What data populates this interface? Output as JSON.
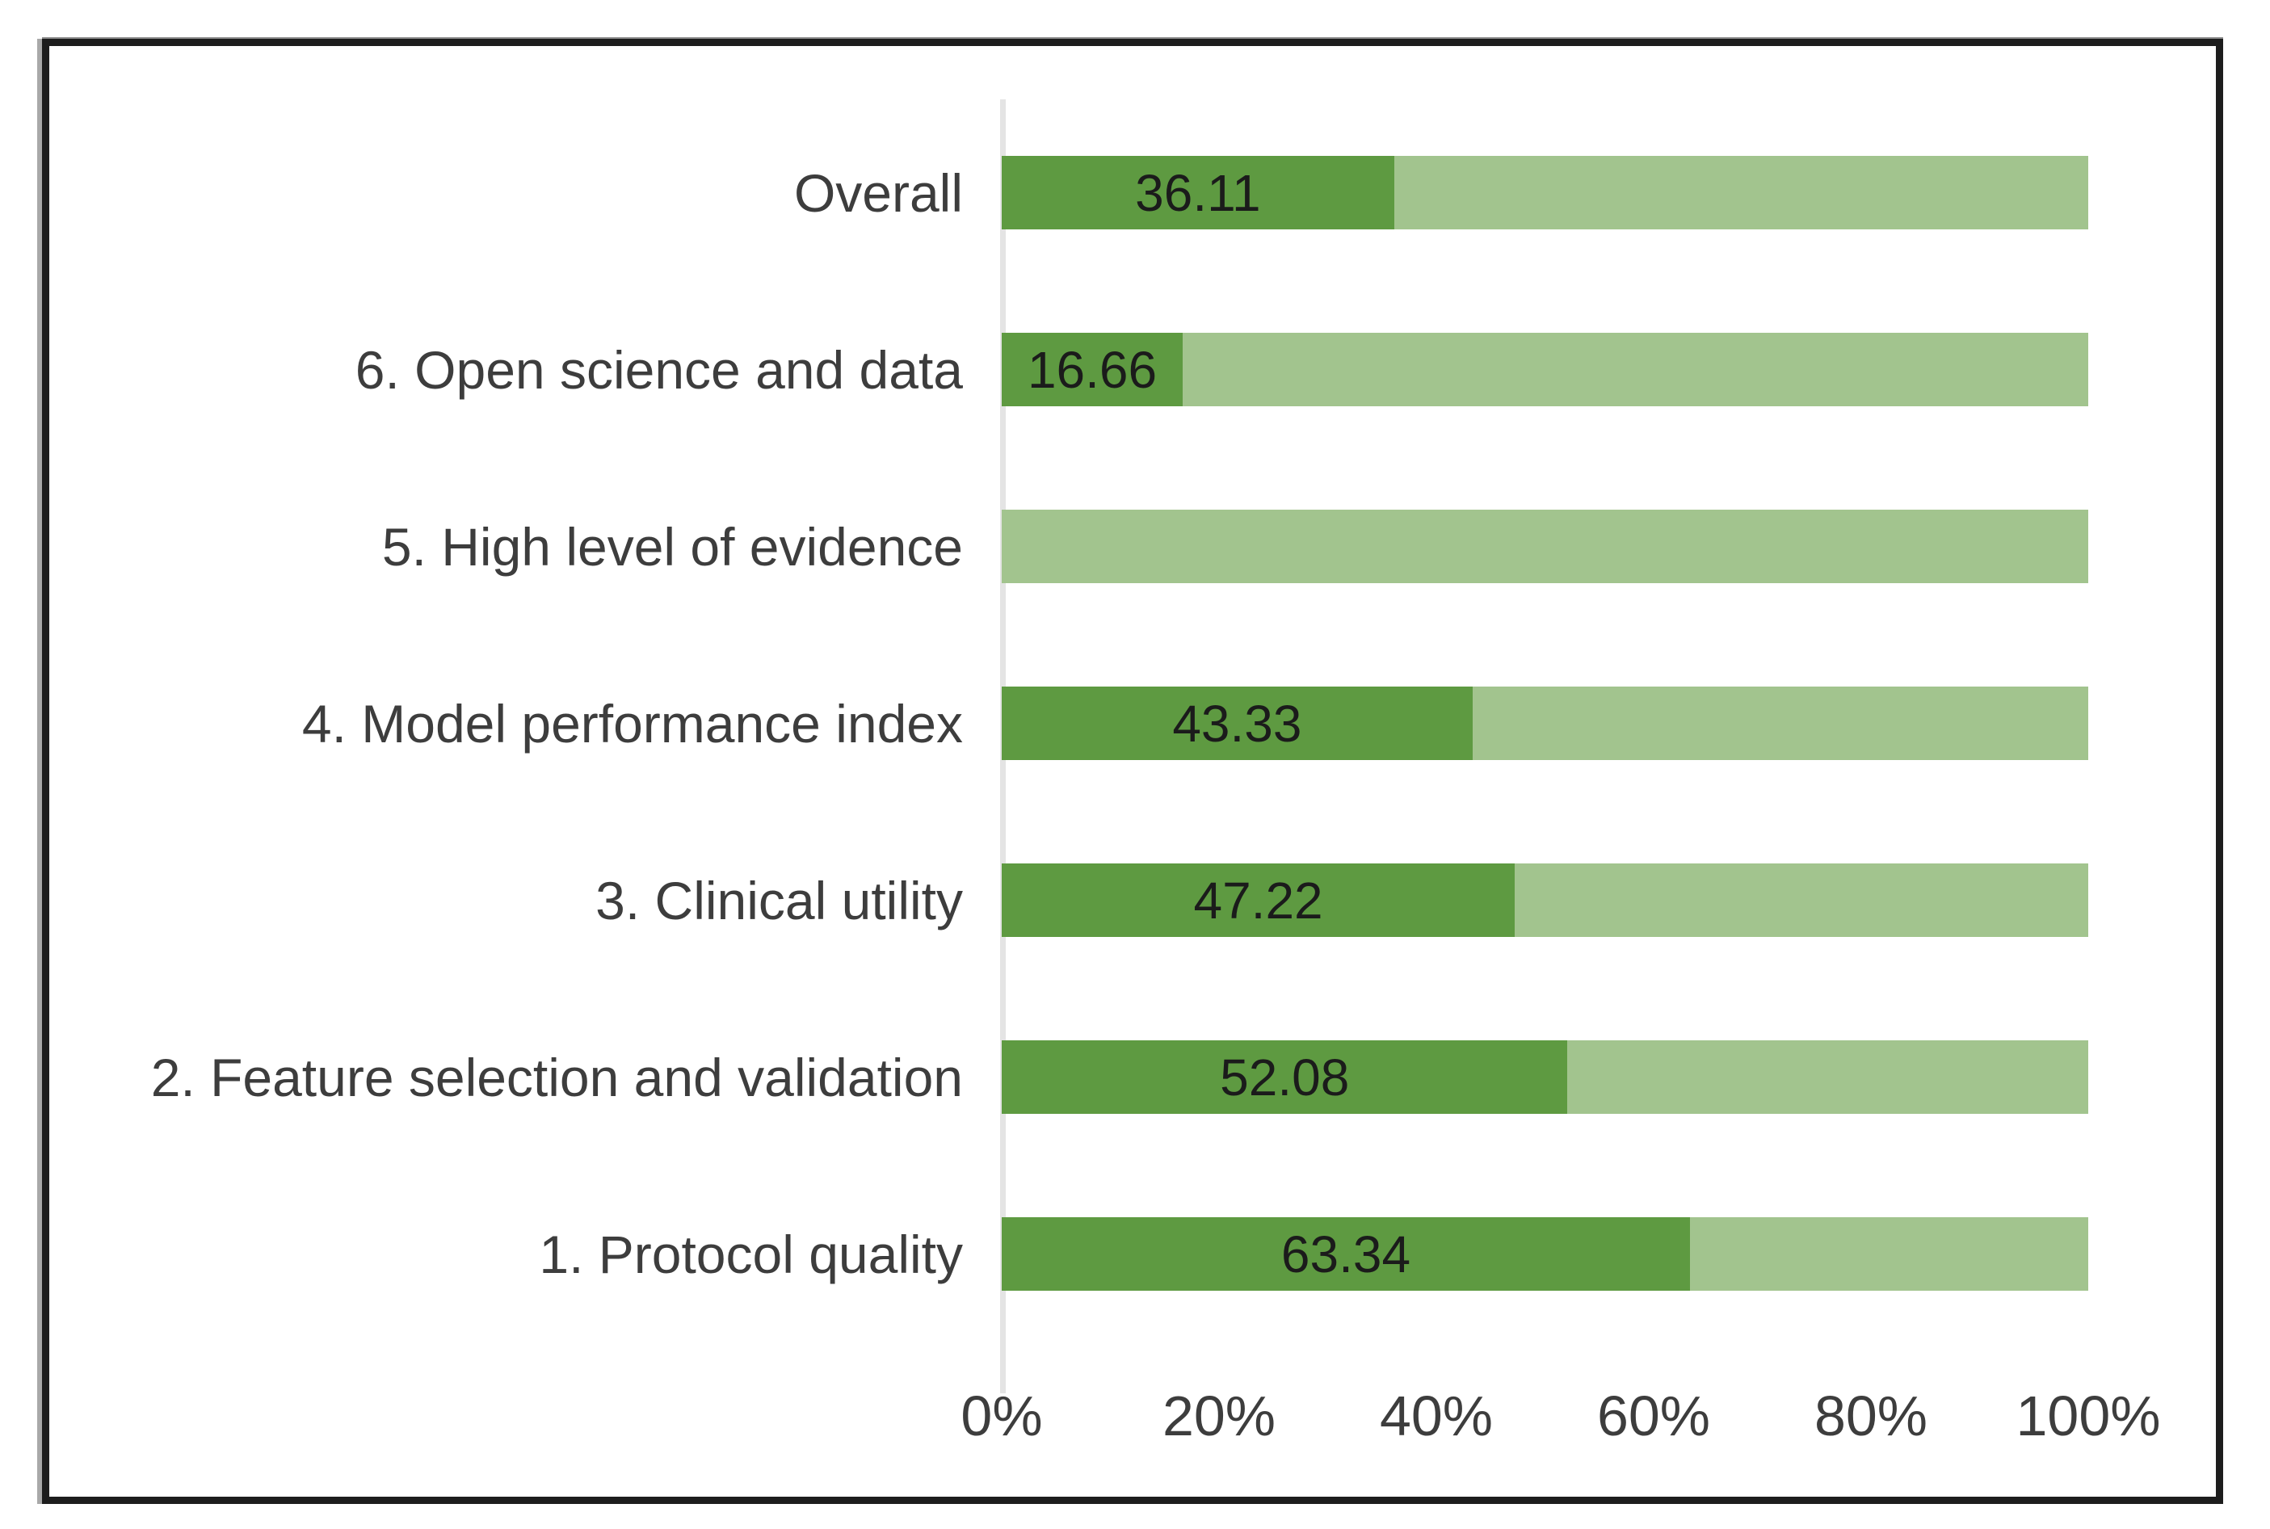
{
  "chart_data": {
    "type": "bar",
    "orientation": "horizontal",
    "stacked": true,
    "title": "",
    "xlabel": "",
    "ylabel": "",
    "xlim": [
      0,
      100
    ],
    "grid": false,
    "legend": false,
    "categories": [
      "Overall",
      "6. Open science and data",
      "5. High level of evidence",
      "4. Model performance index",
      "3. Clinical utility",
      "2. Feature selection and validation",
      "1. Protocol quality"
    ],
    "series": [
      {
        "name": "score-achieved",
        "color": "#5e9a41",
        "values": [
          36.11,
          16.66,
          0,
          43.33,
          47.22,
          52.08,
          63.34
        ]
      },
      {
        "name": "score-remainder",
        "color": "#a2c48e",
        "values": [
          63.89,
          83.34,
          100,
          56.67,
          52.78,
          47.92,
          36.66
        ]
      }
    ],
    "value_labels": [
      "36.11",
      "16.66",
      "",
      "43.33",
      "47.22",
      "52.08",
      "63.34"
    ],
    "x_ticks": [
      "0%",
      "20%",
      "40%",
      "60%",
      "80%",
      "100%"
    ]
  },
  "colors": {
    "frame_border": "#1d1d1d",
    "axis_line": "#e4e4e4",
    "category_text": "#3d3d3d",
    "tick_text": "#3d3d3d",
    "value_text": "#1b1b1b",
    "background": "#ffffff"
  }
}
